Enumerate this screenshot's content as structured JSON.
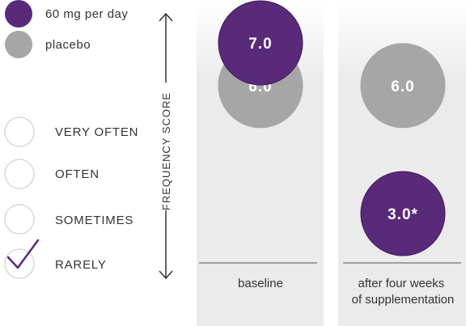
{
  "chart_data": {
    "type": "scatter",
    "title": "",
    "ylabel": "FREQUENCY SCORE",
    "categories": [
      "baseline",
      "after four weeks of supplementation"
    ],
    "category_lines": [
      [
        "baseline"
      ],
      [
        "after four weeks",
        "of supplementation"
      ]
    ],
    "series": [
      {
        "name": "60 mg per day",
        "color": "#5a2a7a",
        "values": [
          7.0,
          3.0
        ],
        "labels": [
          "7.0",
          "3.0*"
        ]
      },
      {
        "name": "placebo",
        "color": "#a6a6a6",
        "values": [
          6.0,
          6.0
        ],
        "labels": [
          "6.0",
          "6.0"
        ]
      }
    ],
    "frequency_scale": [
      "VERY OFTEN",
      "OFTEN",
      "SOMETIMES",
      "RARELY"
    ],
    "checked_option": "RARELY",
    "ylim": [
      0,
      8
    ],
    "colors": {
      "panel": "#ebebeb",
      "check": "#5a2a7a",
      "outline": "#d9d9d9",
      "axis": "#333333"
    }
  }
}
